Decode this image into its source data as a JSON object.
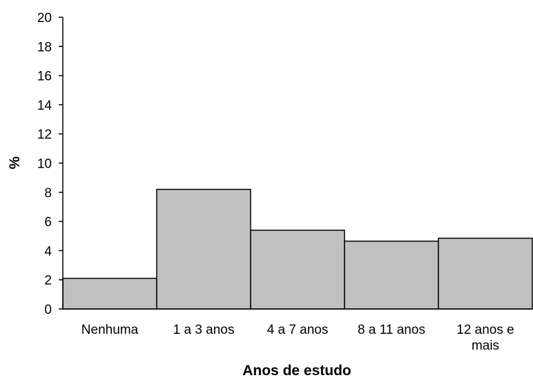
{
  "chart_data": {
    "type": "bar",
    "categories": [
      "Nenhuma",
      "1 a 3 anos",
      "4 a 7 anos",
      "8 a 11 anos",
      "12 anos e mais"
    ],
    "category_label_lines": [
      [
        "Nenhuma"
      ],
      [
        "1 a 3 anos"
      ],
      [
        "4 a 7 anos"
      ],
      [
        "8 a 11 anos"
      ],
      [
        "12 anos e",
        "mais"
      ]
    ],
    "values": [
      2.1,
      8.2,
      5.4,
      4.65,
      4.85
    ],
    "title": "",
    "xlabel": "Anos de estudo",
    "ylabel": "%",
    "ylim": [
      0,
      20
    ],
    "yticks": [
      0,
      2,
      4,
      6,
      8,
      10,
      12,
      14,
      16,
      18,
      20
    ],
    "grid": false,
    "legend": "none",
    "bar_color": "#c0c0c0",
    "bar_edge_color": "#000000"
  }
}
